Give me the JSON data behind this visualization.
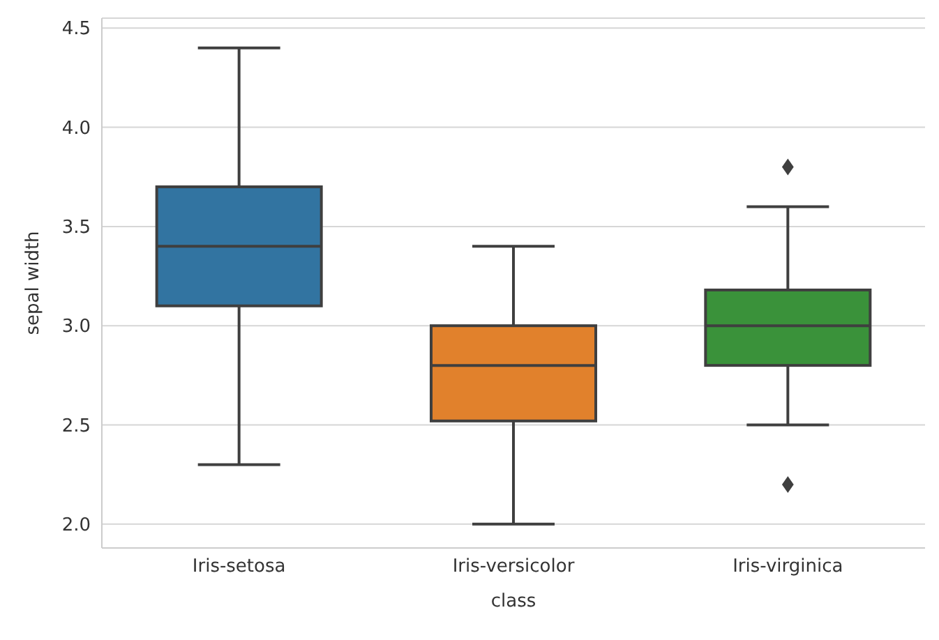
{
  "chart_data": {
    "type": "box",
    "xlabel": "class",
    "ylabel": "sepal width",
    "categories": [
      "Iris-setosa",
      "Iris-versicolor",
      "Iris-virginica"
    ],
    "colors": [
      "#3274a1",
      "#e1812c",
      "#3a923a"
    ],
    "boxes": [
      {
        "low": 2.3,
        "q1": 3.1,
        "median": 3.4,
        "q3": 3.7,
        "high": 4.4
      },
      {
        "low": 2.0,
        "q1": 2.52,
        "median": 2.8,
        "q3": 3.0,
        "high": 3.4
      },
      {
        "low": 2.5,
        "q1": 2.8,
        "median": 3.0,
        "q3": 3.18,
        "high": 3.6,
        "outliers": [
          3.8,
          2.2
        ]
      }
    ],
    "ylim": [
      1.88,
      4.55
    ],
    "yticks": [
      {
        "value": 2,
        "label": "2.0"
      },
      {
        "value": 2.5,
        "label": "2.5"
      },
      {
        "value": 3,
        "label": "3.0"
      },
      {
        "value": 3.5,
        "label": "3.5"
      },
      {
        "value": 4,
        "label": "4.0"
      },
      {
        "value": 4.5,
        "label": "4.5"
      }
    ],
    "grid": "y",
    "marker": "diamond"
  }
}
